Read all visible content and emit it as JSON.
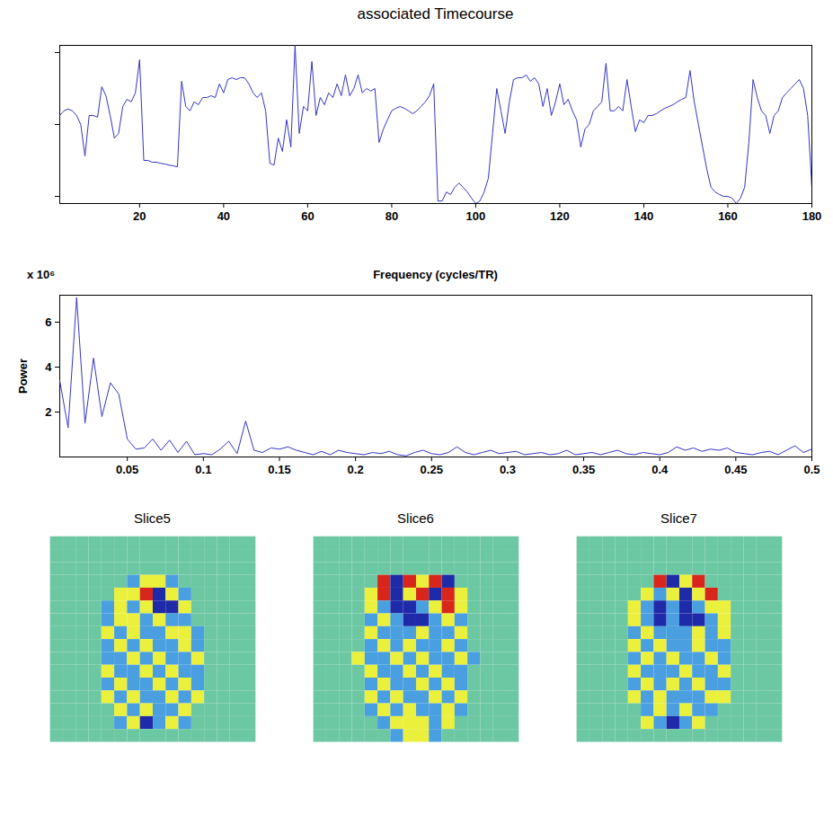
{
  "chart_data": [
    {
      "type": "line",
      "title": "associated Timecourse",
      "color": "#3535c4",
      "x": [
        1,
        2,
        3,
        4,
        5,
        6,
        7,
        8,
        9,
        10,
        11,
        12,
        13,
        14,
        15,
        16,
        17,
        18,
        19,
        20,
        21,
        22,
        23,
        24,
        25,
        26,
        27,
        28,
        29,
        30,
        31,
        32,
        33,
        34,
        35,
        36,
        37,
        38,
        39,
        40,
        41,
        42,
        43,
        44,
        45,
        46,
        47,
        48,
        49,
        50,
        51,
        52,
        53,
        54,
        55,
        56,
        57,
        58,
        59,
        60,
        61,
        62,
        63,
        64,
        65,
        66,
        67,
        68,
        69,
        70,
        71,
        72,
        73,
        74,
        75,
        76,
        77,
        78,
        79,
        80,
        81,
        82,
        83,
        84,
        85,
        86,
        87,
        88,
        89,
        90,
        91,
        92,
        93,
        94,
        95,
        96,
        97,
        98,
        99,
        100,
        101,
        102,
        103,
        104,
        105,
        106,
        107,
        108,
        109,
        110,
        111,
        112,
        113,
        114,
        115,
        116,
        117,
        118,
        119,
        120,
        121,
        122,
        123,
        124,
        125,
        126,
        127,
        128,
        129,
        130,
        131,
        132,
        133,
        134,
        135,
        136,
        137,
        138,
        139,
        140,
        141,
        142,
        143,
        144,
        145,
        146,
        147,
        148,
        149,
        150,
        151,
        152,
        153,
        154,
        155,
        156,
        157,
        158,
        159,
        160,
        161,
        162,
        163,
        164,
        165,
        166,
        167,
        168,
        169,
        170,
        171,
        172,
        173,
        174,
        175,
        176,
        177,
        178,
        179,
        180
      ],
      "values": [
        0.25,
        0.38,
        0.43,
        0.38,
        0.25,
        0,
        -0.88,
        0.25,
        0.25,
        0.2,
        1.05,
        0.8,
        0.25,
        -0.38,
        -0.25,
        0.5,
        0.7,
        0.63,
        0.88,
        1.8,
        -1.0,
        -1.0,
        -1.05,
        -1.05,
        -1.08,
        -1.1,
        -1.13,
        -1.15,
        -1.18,
        1.2,
        0.5,
        0.38,
        0.63,
        0.55,
        0.75,
        0.75,
        0.8,
        0.75,
        1.13,
        0.88,
        1.25,
        1.3,
        1.25,
        1.3,
        1.3,
        1.13,
        0.88,
        0.75,
        0.88,
        0.38,
        -1.08,
        -1.13,
        -0.38,
        -0.75,
        0.13,
        -0.63,
        2.2,
        -0.25,
        0.5,
        0.38,
        1.75,
        0.25,
        0.75,
        0.55,
        0.88,
        0.75,
        1.13,
        0.8,
        1.38,
        0.8,
        1.0,
        1.38,
        0.88,
        1.0,
        0.93,
        1.0,
        -0.5,
        -0.13,
        0.13,
        0.38,
        0.45,
        0.5,
        0.45,
        0.38,
        0.3,
        0.38,
        0.5,
        0.63,
        0.8,
        1.13,
        -2.13,
        -2.13,
        -1.88,
        -1.95,
        -1.75,
        -1.63,
        -1.75,
        -1.88,
        -2.05,
        -2.2,
        -2.13,
        -1.88,
        -1.5,
        -0.25,
        1.0,
        0.38,
        -0.25,
        0.63,
        1.25,
        1.3,
        1.3,
        1.38,
        1.2,
        1.3,
        1.13,
        0.5,
        1.0,
        0.25,
        0.63,
        1.13,
        0.55,
        0.7,
        0.38,
        0.13,
        -0.63,
        -0.13,
        0,
        0.38,
        0.5,
        0.63,
        1.7,
        0.38,
        0.38,
        0.5,
        0.38,
        1.25,
        0.5,
        -0.2,
        0.13,
        0.05,
        0.25,
        0.25,
        0.3,
        0.38,
        0.45,
        0.5,
        0.55,
        0.63,
        0.7,
        0.75,
        1.5,
        0.63,
        0,
        -0.63,
        -1.25,
        -1.75,
        -1.88,
        -1.95,
        -2.0,
        -2.0,
        -2.05,
        -2.2,
        -2.05,
        -1.75,
        -0.5,
        1.25,
        0.75,
        0.38,
        0.25,
        -0.25,
        0.25,
        0.38,
        0.75,
        0.88,
        1.0,
        1.13,
        1.25,
        1.0,
        0.25,
        -1.75
      ],
      "xlim": [
        1,
        180
      ],
      "xticks": [
        20,
        40,
        60,
        80,
        100,
        120,
        140,
        160,
        180
      ],
      "ylim": [
        -2.2,
        2.2
      ],
      "yticks": [
        -2,
        0,
        2
      ],
      "tick_labels": "x"
    },
    {
      "type": "line",
      "x_label": "Frequency (cycles/TR)",
      "y_label": "Power",
      "y_scale_text": "x 10⁶",
      "color": "#3535c4",
      "x": [
        0.0056,
        0.0111,
        0.0167,
        0.0222,
        0.0278,
        0.0333,
        0.0389,
        0.0444,
        0.05,
        0.0556,
        0.0611,
        0.0667,
        0.0722,
        0.0778,
        0.0833,
        0.0889,
        0.0944,
        0.1,
        0.1056,
        0.1111,
        0.1167,
        0.1222,
        0.1278,
        0.1333,
        0.1389,
        0.1444,
        0.15,
        0.1556,
        0.1611,
        0.1667,
        0.1722,
        0.1778,
        0.1833,
        0.1889,
        0.1944,
        0.2,
        0.2056,
        0.2111,
        0.2167,
        0.2222,
        0.2278,
        0.2333,
        0.2389,
        0.2444,
        0.25,
        0.2556,
        0.2611,
        0.2667,
        0.2722,
        0.2778,
        0.2833,
        0.2889,
        0.2944,
        0.3,
        0.3056,
        0.3111,
        0.3167,
        0.3222,
        0.3278,
        0.3333,
        0.3389,
        0.3444,
        0.35,
        0.3556,
        0.3611,
        0.3667,
        0.3722,
        0.3778,
        0.3833,
        0.3889,
        0.3944,
        0.4,
        0.4056,
        0.4111,
        0.4167,
        0.4222,
        0.4278,
        0.4333,
        0.4389,
        0.4444,
        0.45,
        0.4556,
        0.4611,
        0.4667,
        0.4722,
        0.4778,
        0.4833,
        0.4889,
        0.4944,
        0.5
      ],
      "values": [
        3.4,
        1.3,
        7.1,
        1.5,
        4.4,
        1.8,
        3.3,
        2.8,
        0.8,
        0.35,
        0.4,
        0.8,
        0.3,
        0.75,
        0.2,
        0.7,
        0.1,
        0.15,
        0.1,
        0.35,
        0.7,
        0.15,
        1.6,
        0.3,
        0.2,
        0.4,
        0.35,
        0.45,
        0.3,
        0.2,
        0.1,
        0.25,
        0.1,
        0.3,
        0.2,
        0.15,
        0.1,
        0.2,
        0.15,
        0.25,
        0.1,
        0.05,
        0.2,
        0.3,
        0.15,
        0.1,
        0.2,
        0.45,
        0.2,
        0.1,
        0.2,
        0.3,
        0.15,
        0.2,
        0.25,
        0.1,
        0.15,
        0.2,
        0.1,
        0.15,
        0.3,
        0.1,
        0.15,
        0.2,
        0.1,
        0.2,
        0.3,
        0.15,
        0.1,
        0.2,
        0.15,
        0.1,
        0.2,
        0.45,
        0.3,
        0.4,
        0.25,
        0.35,
        0.3,
        0.4,
        0.2,
        0.15,
        0.1,
        0.2,
        0.25,
        0.1,
        0.3,
        0.5,
        0.2,
        0.35
      ],
      "xlim": [
        0.0056,
        0.5
      ],
      "xticks": [
        0.05,
        0.1,
        0.15,
        0.2,
        0.25,
        0.3,
        0.35,
        0.4,
        0.45,
        0.5
      ],
      "ylim": [
        0,
        7.2
      ],
      "yticks": [
        2,
        4,
        6
      ]
    },
    {
      "type": "heatmap",
      "title": "Slice5",
      "color_range": [
        -2,
        2
      ],
      "tick_labels": false,
      "cells": [
        [
          0,
          0,
          0,
          0,
          0,
          0,
          0,
          0,
          0,
          0,
          0,
          0,
          0,
          0,
          0,
          0
        ],
        [
          0,
          0,
          0,
          0,
          0,
          0,
          0,
          0,
          0,
          0,
          0,
          0,
          0,
          0,
          0,
          0
        ],
        [
          0,
          0,
          0,
          0,
          0,
          0,
          0,
          0,
          0,
          0,
          0,
          0,
          0,
          0,
          0,
          0
        ],
        [
          0,
          0,
          0,
          0,
          0,
          0,
          -1,
          1,
          1,
          -1,
          0,
          0,
          0,
          0,
          0,
          0
        ],
        [
          0,
          0,
          0,
          0,
          0,
          1,
          1,
          2,
          -2,
          1,
          -1,
          0,
          0,
          0,
          0,
          0
        ],
        [
          0,
          0,
          0,
          0,
          -1,
          1,
          -1,
          1,
          -2,
          -2,
          1,
          0,
          0,
          0,
          0,
          0
        ],
        [
          0,
          0,
          0,
          0,
          -1,
          1,
          1,
          -1,
          1,
          -1,
          -1,
          0,
          0,
          0,
          0,
          0
        ],
        [
          0,
          0,
          0,
          0,
          1,
          -1,
          1,
          -1,
          -1,
          1,
          1,
          -1,
          0,
          0,
          0,
          0
        ],
        [
          0,
          0,
          0,
          0,
          -1,
          1,
          -1,
          1,
          -1,
          -1,
          1,
          -1,
          0,
          0,
          0,
          0
        ],
        [
          0,
          0,
          0,
          0,
          -1,
          -1,
          1,
          -1,
          1,
          -1,
          -1,
          1,
          0,
          0,
          0,
          0
        ],
        [
          0,
          0,
          0,
          0,
          1,
          -1,
          -1,
          1,
          -1,
          1,
          -1,
          -1,
          0,
          0,
          0,
          0
        ],
        [
          0,
          0,
          0,
          0,
          -1,
          1,
          -1,
          -1,
          1,
          -1,
          1,
          -1,
          0,
          0,
          0,
          0
        ],
        [
          0,
          0,
          0,
          0,
          1,
          -1,
          1,
          -1,
          -1,
          1,
          -1,
          1,
          0,
          0,
          0,
          0
        ],
        [
          0,
          0,
          0,
          0,
          0,
          1,
          -1,
          1,
          -1,
          -1,
          1,
          0,
          0,
          0,
          0,
          0
        ],
        [
          0,
          0,
          0,
          0,
          0,
          -1,
          1,
          -2,
          -1,
          1,
          -1,
          0,
          0,
          0,
          0,
          0
        ],
        [
          0,
          0,
          0,
          0,
          0,
          0,
          0,
          0,
          0,
          0,
          0,
          0,
          0,
          0,
          0,
          0
        ]
      ]
    },
    {
      "type": "heatmap",
      "title": "Slice6",
      "color_range": [
        -2,
        2
      ],
      "tick_labels": false,
      "cells": [
        [
          0,
          0,
          0,
          0,
          0,
          0,
          0,
          0,
          0,
          0,
          0,
          0,
          0,
          0,
          0,
          0
        ],
        [
          0,
          0,
          0,
          0,
          0,
          0,
          0,
          0,
          0,
          0,
          0,
          0,
          0,
          0,
          0,
          0
        ],
        [
          0,
          0,
          0,
          0,
          0,
          0,
          0,
          0,
          0,
          0,
          0,
          0,
          0,
          0,
          0,
          0
        ],
        [
          0,
          0,
          0,
          0,
          0,
          2,
          -2,
          2,
          1,
          2,
          -2,
          0,
          0,
          0,
          0,
          0
        ],
        [
          0,
          0,
          0,
          0,
          1,
          2,
          -2,
          1,
          2,
          -2,
          2,
          1,
          0,
          0,
          0,
          0
        ],
        [
          0,
          0,
          0,
          0,
          1,
          -1,
          -2,
          -2,
          -1,
          1,
          2,
          1,
          0,
          0,
          0,
          0
        ],
        [
          0,
          0,
          0,
          0,
          -1,
          1,
          -1,
          -2,
          -2,
          -1,
          1,
          -1,
          0,
          0,
          0,
          0
        ],
        [
          0,
          0,
          0,
          0,
          1,
          -1,
          -1,
          -1,
          1,
          -1,
          -1,
          1,
          0,
          0,
          0,
          0
        ],
        [
          0,
          0,
          0,
          0,
          -1,
          1,
          -1,
          1,
          -1,
          -1,
          1,
          -1,
          0,
          0,
          0,
          0
        ],
        [
          0,
          0,
          0,
          1,
          -1,
          -1,
          1,
          -1,
          1,
          -1,
          -1,
          1,
          -1,
          0,
          0,
          0
        ],
        [
          0,
          0,
          0,
          0,
          1,
          -1,
          -1,
          1,
          -1,
          1,
          -1,
          -1,
          0,
          0,
          0,
          0
        ],
        [
          0,
          0,
          0,
          0,
          -1,
          1,
          -1,
          -1,
          1,
          -1,
          1,
          -1,
          0,
          0,
          0,
          0
        ],
        [
          0,
          0,
          0,
          0,
          1,
          -1,
          1,
          -1,
          -1,
          1,
          -1,
          1,
          0,
          0,
          0,
          0
        ],
        [
          0,
          0,
          0,
          0,
          -1,
          1,
          -1,
          1,
          -1,
          -1,
          1,
          -1,
          0,
          0,
          0,
          0
        ],
        [
          0,
          0,
          0,
          0,
          0,
          -1,
          1,
          1,
          1,
          -1,
          1,
          0,
          0,
          0,
          0,
          0
        ],
        [
          0,
          0,
          0,
          0,
          0,
          0,
          -1,
          1,
          1,
          -1,
          0,
          0,
          0,
          0,
          0,
          0
        ]
      ]
    },
    {
      "type": "heatmap",
      "title": "Slice7",
      "color_range": [
        -2,
        2
      ],
      "tick_labels": false,
      "cells": [
        [
          0,
          0,
          0,
          0,
          0,
          0,
          0,
          0,
          0,
          0,
          0,
          0,
          0,
          0,
          0,
          0
        ],
        [
          0,
          0,
          0,
          0,
          0,
          0,
          0,
          0,
          0,
          0,
          0,
          0,
          0,
          0,
          0,
          0
        ],
        [
          0,
          0,
          0,
          0,
          0,
          0,
          0,
          0,
          0,
          0,
          0,
          0,
          0,
          0,
          0,
          0
        ],
        [
          0,
          0,
          0,
          0,
          0,
          0,
          2,
          -2,
          1,
          2,
          0,
          0,
          0,
          0,
          0,
          0
        ],
        [
          0,
          0,
          0,
          0,
          0,
          1,
          -1,
          1,
          -2,
          1,
          2,
          0,
          0,
          0,
          0,
          0
        ],
        [
          0,
          0,
          0,
          0,
          1,
          -1,
          -2,
          -1,
          -2,
          -1,
          1,
          1,
          0,
          0,
          0,
          0
        ],
        [
          0,
          0,
          0,
          0,
          1,
          -1,
          -2,
          -1,
          -2,
          -2,
          -1,
          1,
          0,
          0,
          0,
          0
        ],
        [
          0,
          0,
          0,
          0,
          -1,
          1,
          -1,
          -1,
          -1,
          1,
          -1,
          1,
          0,
          0,
          0,
          0
        ],
        [
          0,
          0,
          0,
          0,
          1,
          -1,
          1,
          -1,
          -1,
          1,
          -1,
          -1,
          0,
          0,
          0,
          0
        ],
        [
          0,
          0,
          0,
          0,
          -1,
          1,
          -1,
          1,
          -1,
          -1,
          1,
          -1,
          0,
          0,
          0,
          0
        ],
        [
          0,
          0,
          0,
          0,
          1,
          -1,
          -1,
          -1,
          1,
          -1,
          -1,
          1,
          0,
          0,
          0,
          0
        ],
        [
          0,
          0,
          0,
          0,
          -1,
          1,
          -1,
          1,
          -1,
          1,
          -1,
          -1,
          0,
          0,
          0,
          0
        ],
        [
          0,
          0,
          0,
          0,
          1,
          -1,
          1,
          -1,
          -1,
          -1,
          1,
          1,
          0,
          0,
          0,
          0
        ],
        [
          0,
          0,
          0,
          0,
          0,
          -1,
          1,
          -1,
          1,
          -1,
          -1,
          0,
          0,
          0,
          0,
          0
        ],
        [
          0,
          0,
          0,
          0,
          0,
          1,
          -1,
          -2,
          -1,
          1,
          0,
          0,
          0,
          0,
          0,
          0
        ],
        [
          0,
          0,
          0,
          0,
          0,
          0,
          0,
          0,
          0,
          0,
          0,
          0,
          0,
          0,
          0,
          0
        ]
      ]
    }
  ]
}
